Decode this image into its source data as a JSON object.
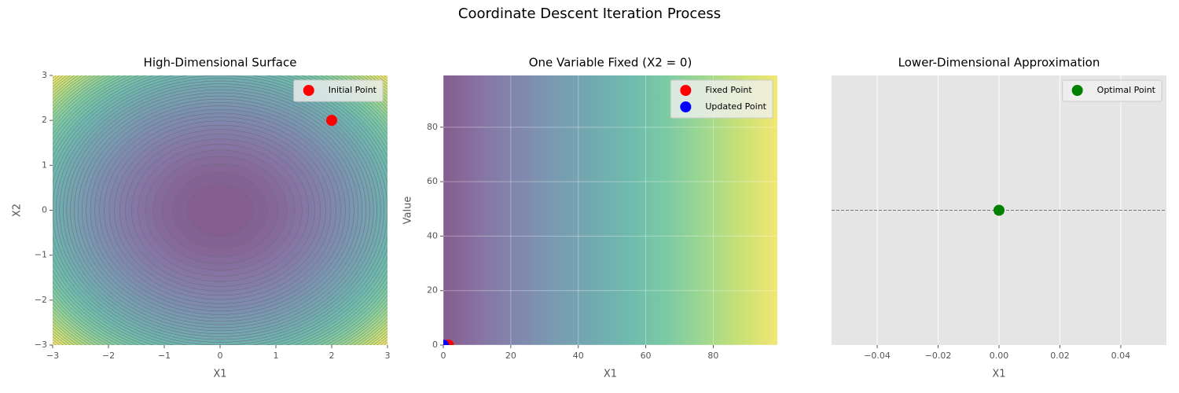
{
  "title": "Coordinate Descent Iteration Process",
  "chart_data": [
    {
      "type": "contour",
      "title": "High-Dimensional Surface",
      "x_label": "X1",
      "y_label": "X2",
      "xlim": [
        -3,
        3
      ],
      "ylim": [
        -3,
        3
      ],
      "xticks": [
        {
          "value": -3,
          "label": "−3"
        },
        {
          "value": -2,
          "label": "−2"
        },
        {
          "value": -1,
          "label": "−1"
        },
        0,
        1,
        2,
        3
      ],
      "yticks": [
        {
          "value": -3,
          "label": "−3"
        },
        {
          "value": -2,
          "label": "−2"
        },
        {
          "value": -1,
          "label": "−1"
        },
        0,
        1,
        2,
        3
      ],
      "colormap": "viridis",
      "levels": 50,
      "legend": "upper right",
      "series": [
        {
          "name": "Initial Point",
          "color": "#ff0000",
          "x": [
            2
          ],
          "values": [
            2
          ]
        }
      ]
    },
    {
      "type": "image",
      "title": "One Variable Fixed (X2 = 0)",
      "x_label": "X1",
      "y_label": "Value",
      "xlim": [
        0,
        99
      ],
      "ylim": [
        0,
        99
      ],
      "xticks": [
        0,
        20,
        40,
        60,
        80
      ],
      "yticks": [
        0,
        20,
        40,
        60,
        80
      ],
      "colormap": "viridis",
      "grid": true,
      "legend": "upper right",
      "series": [
        {
          "name": "Fixed Point",
          "color": "#ff0000",
          "x": [
            1.5
          ],
          "values": [
            0
          ]
        },
        {
          "name": "Updated Point",
          "color": "#0000ff",
          "x": [
            0
          ],
          "values": [
            0
          ]
        }
      ]
    },
    {
      "type": "scatter",
      "title": "Lower-Dimensional Approximation",
      "x_label": "X1",
      "xlim": [
        -0.055,
        0.055
      ],
      "ylim": [
        -0.055,
        0.055
      ],
      "xticks": [
        {
          "value": -0.04,
          "label": "−0.04"
        },
        {
          "value": -0.02,
          "label": "−0.02"
        },
        {
          "value": 0,
          "label": "0.00"
        },
        {
          "value": 0.02,
          "label": "0.02"
        },
        {
          "value": 0.04,
          "label": "0.04"
        }
      ],
      "hline": 0,
      "grid": true,
      "legend": "upper right",
      "series": [
        {
          "name": "Optimal Point",
          "color": "#008000",
          "x": [
            0
          ],
          "values": [
            0
          ]
        }
      ]
    }
  ]
}
